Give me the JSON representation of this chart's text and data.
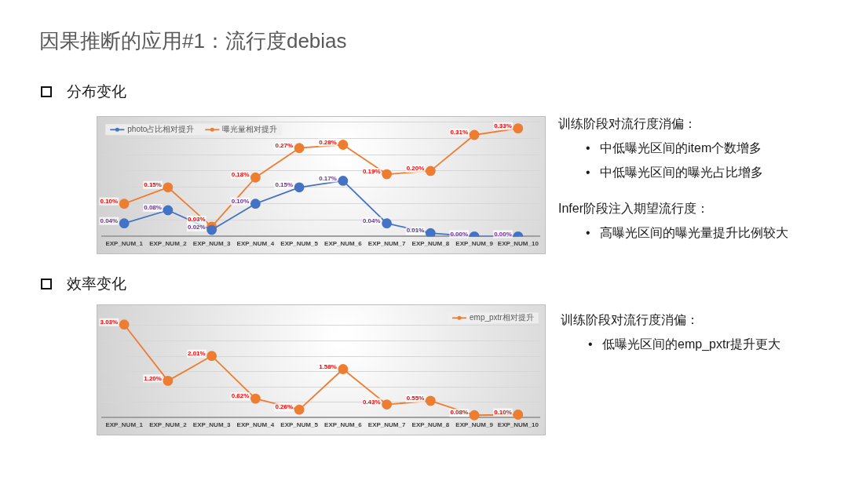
{
  "chart_data": [
    {
      "type": "line",
      "title": "因果推断的应用#1：流行度debias",
      "subtitle": "分布变化",
      "categories": [
        "EXP_NUM_1",
        "EXP_NUM_2",
        "EXP_NUM_3",
        "EXP_NUM_4",
        "EXP_NUM_5",
        "EXP_NUM_6",
        "EXP_NUM_7",
        "EXP_NUM_8",
        "EXP_NUM_9",
        "EXP_NUM_10"
      ],
      "series": [
        {
          "name": "photo占比相对提升",
          "color": "#4472c4",
          "values": [
            0.04,
            0.08,
            0.02,
            0.1,
            0.15,
            0.17,
            0.04,
            0.01,
            0.0,
            0.0
          ],
          "value_labels": [
            "0.04%",
            "0.08%",
            "0.02%",
            "0.10%",
            "0.15%",
            "0.17%",
            "0.04%",
            "0.01%",
            "0.00%",
            "0.00%"
          ]
        },
        {
          "name": "曝光量相对提升",
          "color": "#ed7d31",
          "values": [
            0.1,
            0.15,
            0.03,
            0.18,
            0.27,
            0.28,
            0.19,
            0.2,
            0.31,
            0.33
          ],
          "value_labels": [
            "0.10%",
            "0.15%",
            "0.03%",
            "0.18%",
            "0.27%",
            "0.28%",
            "0.19%",
            "0.20%",
            "0.31%",
            "0.33%"
          ]
        }
      ],
      "ylim": [
        0,
        0.35
      ],
      "yticks": [
        {
          "value": 0,
          "label": null
        },
        {
          "value": 0.05,
          "label": null
        },
        {
          "value": 0.1,
          "label": null
        },
        {
          "value": 0.15,
          "label": null
        },
        {
          "value": 0.2,
          "label": null
        },
        {
          "value": 0.25,
          "label": null
        },
        {
          "value": 0.3,
          "label": null
        },
        {
          "value": 0.35,
          "label": null
        }
      ],
      "tick_labels": "x",
      "grid": "y",
      "legend": "top left",
      "marker": "circle",
      "annotations": [
        "训练阶段对流行度消偏：",
        "• 中低曝光区间的item个数增多",
        "• 中低曝光区间的曝光占比增多",
        "Infer阶段注入期望流行度：",
        "• 高曝光区间的曝光量提升比例较大"
      ]
    },
    {
      "type": "line",
      "title": "效率变化",
      "categories": [
        "EXP_NUM_1",
        "EXP_NUM_2",
        "EXP_NUM_3",
        "EXP_NUM_4",
        "EXP_NUM_5",
        "EXP_NUM_6",
        "EXP_NUM_7",
        "EXP_NUM_8",
        "EXP_NUM_9",
        "EXP_NUM_10"
      ],
      "series": [
        {
          "name": "emp_pxtr相对提升",
          "color": "#ed7d31",
          "values": [
            3.03,
            1.2,
            2.01,
            0.62,
            0.26,
            1.58,
            0.43,
            0.55,
            0.08,
            0.1
          ],
          "value_labels": [
            "3.03%",
            "1.20%",
            "2.01%",
            "0.62%",
            "0.26%",
            "1.58%",
            "0.43%",
            "0.55%",
            "0.08%",
            "0.10%"
          ]
        }
      ],
      "yticks": [
        {
          "value": 0,
          "label": null
        },
        {
          "value": 0.5,
          "label": null
        },
        {
          "value": 1,
          "label": null
        },
        {
          "value": 1.5,
          "label": null
        },
        {
          "value": 2,
          "label": null
        },
        {
          "value": 2.5,
          "label": null
        },
        {
          "value": 3,
          "label": null
        }
      ],
      "tick_labels": "x",
      "grid": "y",
      "legend": "top right",
      "marker": "circle",
      "annotations": [
        "训练阶段对流行度消偏：",
        "• 低曝光区间的emp_pxtr提升更大"
      ]
    }
  ]
}
